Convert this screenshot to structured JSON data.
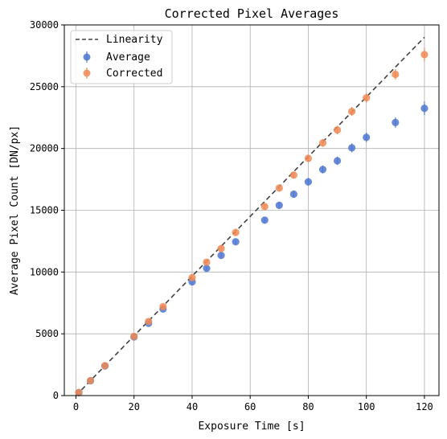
{
  "chart_data": {
    "type": "scatter",
    "title": "Corrected Pixel Averages",
    "xlabel": "Exposure Time [s]",
    "ylabel": "Average Pixel Count [DN/px]",
    "xlim": [
      -4,
      125
    ],
    "ylim": [
      0,
      30000
    ],
    "xticks": [
      "0",
      "20",
      "40",
      "60",
      "80",
      "100",
      "120"
    ],
    "yticks": [
      "0",
      "5000",
      "10000",
      "15000",
      "20000",
      "25000",
      "30000"
    ],
    "grid": true,
    "legend_position": "top-left",
    "linearity": {
      "name": "Linearity",
      "x": [
        0,
        120
      ],
      "y": [
        0,
        29000
      ],
      "color": "#404040"
    },
    "series": [
      {
        "name": "Average",
        "color": "#4f77d0",
        "x": [
          1,
          5,
          10,
          20,
          25,
          30,
          40,
          45,
          50,
          55,
          65,
          70,
          75,
          80,
          85,
          90,
          95,
          100,
          110,
          120
        ],
        "y": [
          240,
          1200,
          2400,
          4750,
          5850,
          7000,
          9200,
          10300,
          11350,
          12450,
          14200,
          15400,
          16300,
          17300,
          18300,
          19000,
          20050,
          20900,
          22100,
          23250
        ],
        "err": [
          60,
          60,
          80,
          100,
          120,
          140,
          160,
          180,
          200,
          220,
          240,
          260,
          280,
          300,
          320,
          340,
          360,
          380,
          420,
          550
        ]
      },
      {
        "name": "Corrected",
        "color": "#ee8a55",
        "x": [
          1,
          5,
          10,
          20,
          25,
          30,
          40,
          45,
          50,
          55,
          65,
          70,
          75,
          80,
          85,
          90,
          95,
          100,
          110,
          120
        ],
        "y": [
          250,
          1210,
          2420,
          4790,
          6000,
          7200,
          9550,
          10800,
          11900,
          13200,
          15300,
          16800,
          17850,
          19200,
          20450,
          21500,
          23000,
          24100,
          26000,
          27600
        ],
        "err": [
          60,
          60,
          80,
          100,
          120,
          140,
          160,
          180,
          200,
          220,
          240,
          260,
          280,
          300,
          320,
          340,
          360,
          380,
          420,
          550
        ]
      }
    ]
  }
}
